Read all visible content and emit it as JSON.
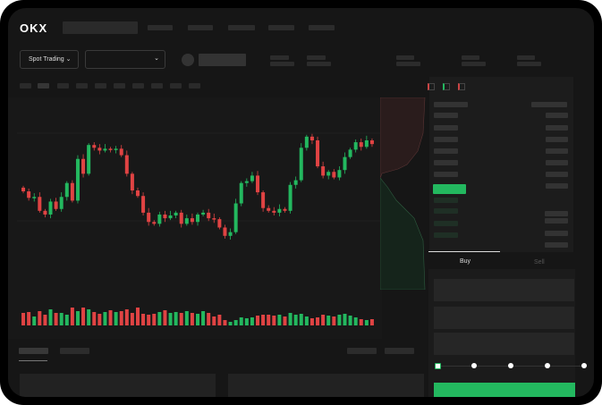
{
  "header": {
    "logo": "OKX"
  },
  "market": {
    "mode_label": "Spot Trading"
  },
  "order_form": {
    "buy_tab": "Buy",
    "sell_tab": "Sell",
    "leverage_steps": 5,
    "selected_step": 0
  },
  "colors": {
    "up": "#23b85f",
    "down": "#e04343",
    "background": "#161616",
    "buy_button": "#23b85f"
  },
  "chart_data": {
    "type": "candlestick",
    "first_open": 57,
    "closes": [
      53,
      46,
      47,
      32,
      28,
      42,
      34,
      47,
      62,
      43,
      88,
      72,
      103,
      100,
      97,
      99,
      98,
      99,
      92,
      72,
      54,
      48,
      30,
      20,
      18,
      28,
      24,
      27,
      30,
      18,
      24,
      20,
      28,
      30,
      24,
      23,
      14,
      5,
      9,
      40,
      62,
      64,
      70,
      52,
      35,
      32,
      30,
      34,
      32,
      60,
      65,
      100,
      112,
      108,
      80,
      70,
      74,
      68,
      76,
      90,
      98,
      106,
      101,
      108,
      104
    ],
    "volume": [
      14,
      15,
      10,
      16,
      12,
      18,
      14,
      14,
      12,
      20,
      16,
      20,
      18,
      15,
      13,
      15,
      17,
      15,
      16,
      18,
      14,
      20,
      13,
      12,
      13,
      15,
      17,
      14,
      15,
      14,
      16,
      14,
      13,
      16,
      14,
      10,
      12,
      6,
      4,
      6,
      9,
      8,
      9,
      11,
      12,
      12,
      11,
      12,
      10,
      14,
      12,
      13,
      10,
      8,
      9,
      12,
      11,
      10,
      12,
      13,
      11,
      9,
      7,
      6,
      7
    ],
    "ylim": [
      0,
      135
    ],
    "grid": true
  }
}
